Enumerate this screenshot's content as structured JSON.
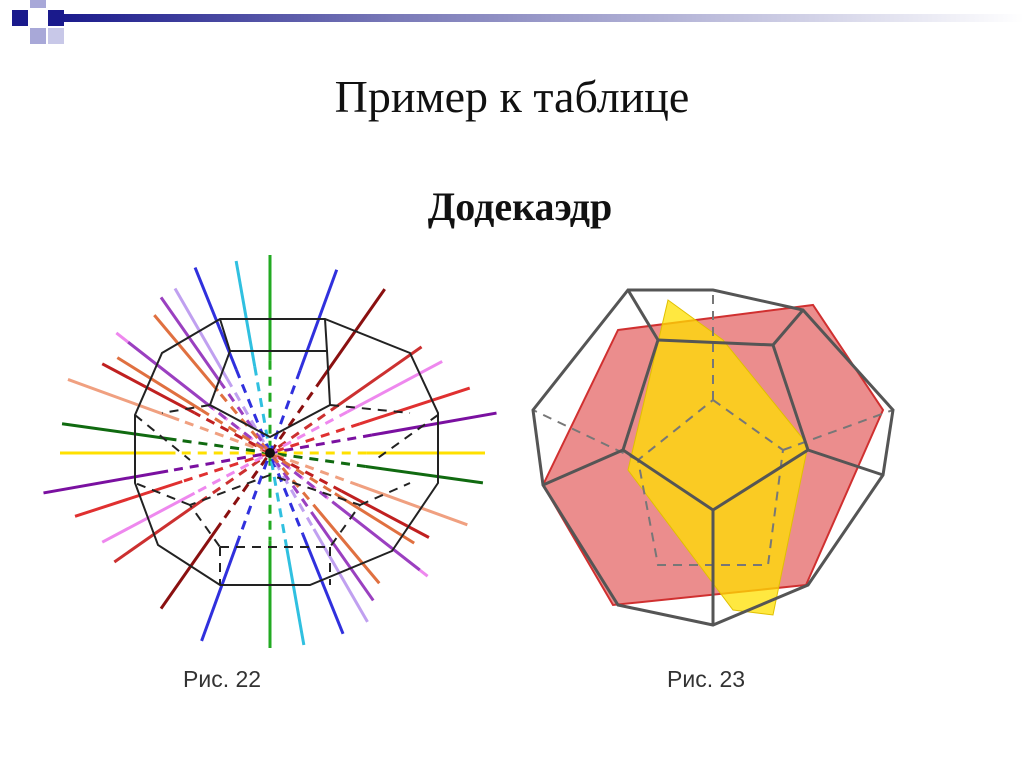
{
  "slide": {
    "title": "Пример к таблице",
    "subtitle": "Додекаэдр"
  },
  "figures": [
    {
      "caption": "Рис. 22"
    },
    {
      "caption": "Рис. 23"
    }
  ],
  "colors": {
    "accent_navy": "#1a1a8c",
    "accent_lavender": "#a8a8d8",
    "edge_gray": "#555555",
    "plane_red": "#e05050",
    "plane_yellow": "#ffe000"
  }
}
